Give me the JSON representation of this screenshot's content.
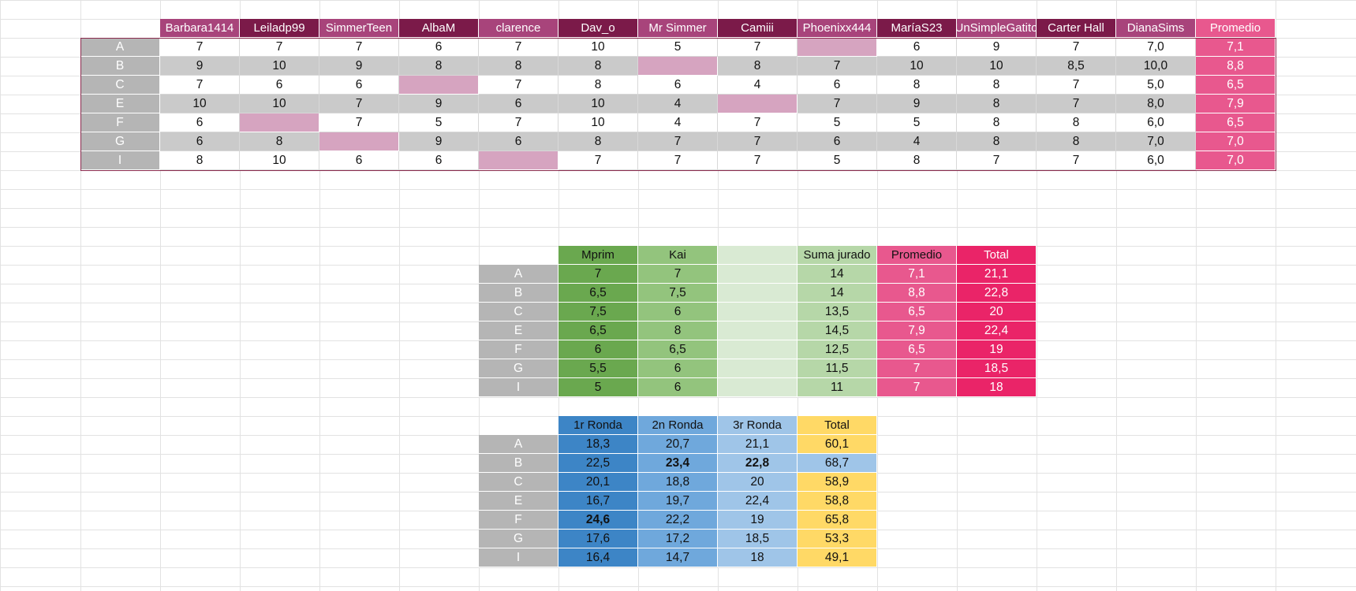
{
  "colors": {
    "purple_dark": "#7b1a49",
    "purple_mid": "#a8447b",
    "pink_hot": "#e8588e",
    "pink_light": "#d6a4c0",
    "row_gray": "#cacaca",
    "label_gray": "#b5b5b5",
    "green_dark": "#6aa84f",
    "green_mid": "#93c47d",
    "green_light": "#b6d7a8",
    "green_pale": "#d9ead3",
    "promedio2": "#e8588e",
    "total_red": "#ea2468",
    "blue_dark": "#3d85c6",
    "blue_mid": "#6fa8dc",
    "blue_light": "#9fc5e8",
    "yellow": "#ffd966"
  },
  "votes": {
    "headers": [
      "Barbara1414",
      "Leiladp99",
      "SimmerTeen",
      "AlbaM",
      "clarence",
      "Dav_o",
      "Mr Simmer",
      "Camiii",
      "Phoenixx444",
      "MaríaS23",
      "UnSimpleGatito",
      "Carter Hall",
      "DianaSims",
      "Promedio"
    ],
    "rows": [
      {
        "label": "A",
        "cells": [
          "7",
          "7",
          "7",
          "6",
          "7",
          "10",
          "5",
          "7",
          "",
          "6",
          "9",
          "7",
          "7,0",
          "7,1"
        ]
      },
      {
        "label": "B",
        "cells": [
          "9",
          "10",
          "9",
          "8",
          "8",
          "8",
          "",
          "8",
          "7",
          "10",
          "10",
          "8,5",
          "10,0",
          "8,8"
        ]
      },
      {
        "label": "C",
        "cells": [
          "7",
          "6",
          "6",
          "",
          "7",
          "8",
          "6",
          "4",
          "6",
          "8",
          "8",
          "7",
          "5,0",
          "6,5"
        ]
      },
      {
        "label": "E",
        "cells": [
          "10",
          "10",
          "7",
          "9",
          "6",
          "10",
          "4",
          "",
          "7",
          "9",
          "8",
          "7",
          "8,0",
          "7,9"
        ]
      },
      {
        "label": "F",
        "cells": [
          "6",
          "",
          "7",
          "5",
          "7",
          "10",
          "4",
          "7",
          "5",
          "5",
          "8",
          "8",
          "6,0",
          "6,5"
        ]
      },
      {
        "label": "G",
        "cells": [
          "6",
          "8",
          "",
          "9",
          "6",
          "8",
          "7",
          "7",
          "6",
          "4",
          "8",
          "8",
          "7,0",
          "7,0"
        ]
      },
      {
        "label": "I",
        "cells": [
          "8",
          "10",
          "6",
          "6",
          "",
          "7",
          "7",
          "7",
          "5",
          "8",
          "7",
          "7",
          "6,0",
          "7,0"
        ]
      }
    ]
  },
  "jury": {
    "headers": [
      "Mprim",
      "Kai",
      "",
      "Suma jurado",
      "Promedio",
      "Total"
    ],
    "rows": [
      {
        "label": "A",
        "cells": [
          "7",
          "7",
          "",
          "14",
          "7,1",
          "21,1"
        ]
      },
      {
        "label": "B",
        "cells": [
          "6,5",
          "7,5",
          "",
          "14",
          "8,8",
          "22,8"
        ]
      },
      {
        "label": "C",
        "cells": [
          "7,5",
          "6",
          "",
          "13,5",
          "6,5",
          "20"
        ]
      },
      {
        "label": "E",
        "cells": [
          "6,5",
          "8",
          "",
          "14,5",
          "7,9",
          "22,4"
        ]
      },
      {
        "label": "F",
        "cells": [
          "6",
          "6,5",
          "",
          "12,5",
          "6,5",
          "19"
        ]
      },
      {
        "label": "G",
        "cells": [
          "5,5",
          "6",
          "",
          "11,5",
          "7",
          "18,5"
        ]
      },
      {
        "label": "I",
        "cells": [
          "5",
          "6",
          "",
          "11",
          "7",
          "18"
        ]
      }
    ]
  },
  "rounds": {
    "headers": [
      "1r Ronda",
      "2n Ronda",
      "3r Ronda",
      "Total"
    ],
    "rows": [
      {
        "label": "A",
        "cells": [
          "18,3",
          "20,7",
          "21,1",
          "60,1"
        ]
      },
      {
        "label": "B",
        "cells": [
          "22,5",
          "23,4",
          "22,8",
          "68,7"
        ]
      },
      {
        "label": "C",
        "cells": [
          "20,1",
          "18,8",
          "20",
          "58,9"
        ]
      },
      {
        "label": "E",
        "cells": [
          "16,7",
          "19,7",
          "22,4",
          "58,8"
        ]
      },
      {
        "label": "F",
        "cells": [
          "24,6",
          "22,2",
          "19",
          "65,8"
        ]
      },
      {
        "label": "G",
        "cells": [
          "17,6",
          "17,2",
          "18,5",
          "53,3"
        ]
      },
      {
        "label": "I",
        "cells": [
          "16,4",
          "14,7",
          "18",
          "49,1"
        ]
      }
    ]
  }
}
